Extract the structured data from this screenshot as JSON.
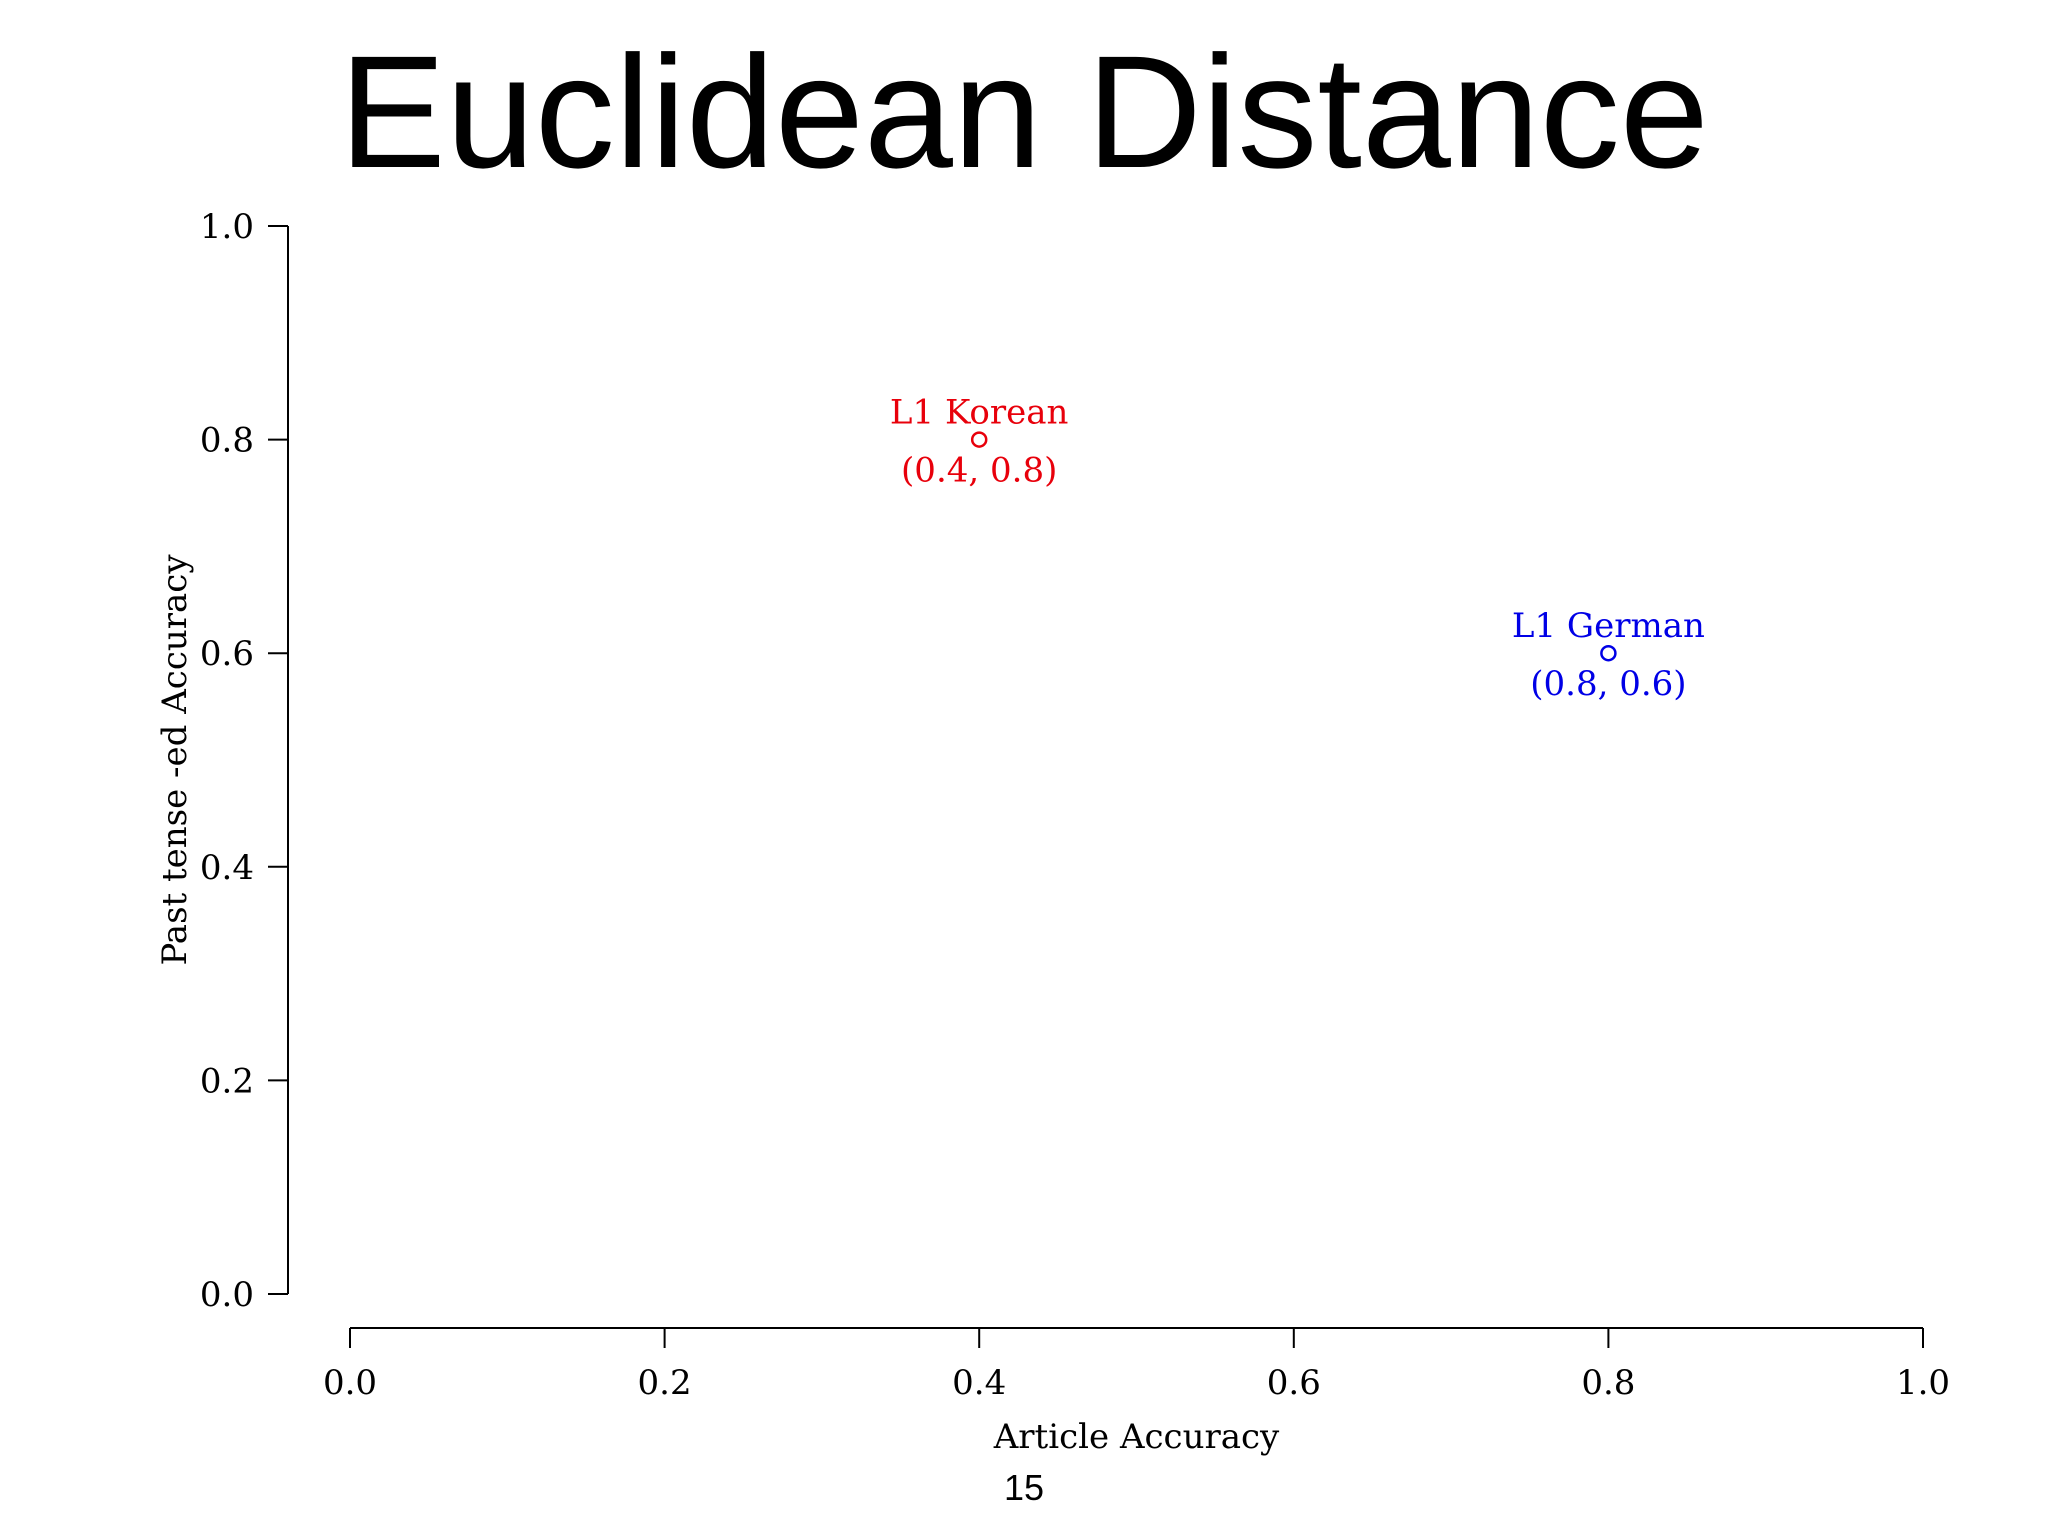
{
  "slide": {
    "title": "Euclidean Distance",
    "page_number": "15"
  },
  "chart_data": {
    "type": "scatter",
    "title": "",
    "xlabel": "Article Accuracy",
    "ylabel": "Past tense -ed Accuracy",
    "xlim": [
      0.0,
      1.0
    ],
    "ylim": [
      0.0,
      1.0
    ],
    "xticks": [
      0.0,
      0.2,
      0.4,
      0.6,
      0.8,
      1.0
    ],
    "yticks": [
      0.0,
      0.2,
      0.4,
      0.6,
      0.8,
      1.0
    ],
    "xtick_labels": [
      "0.0",
      "0.2",
      "0.4",
      "0.6",
      "0.8",
      "1.0"
    ],
    "ytick_labels": [
      "0.0",
      "0.2",
      "0.4",
      "0.6",
      "0.8",
      "1.0"
    ],
    "grid": false,
    "marker": "open-circle",
    "points": [
      {
        "name": "L1 Korean",
        "x": 0.4,
        "y": 0.8,
        "label": "L1 Korean",
        "coord_label": "(0.4, 0.8)",
        "color": "#e8000b"
      },
      {
        "name": "L1 German",
        "x": 0.8,
        "y": 0.6,
        "label": "L1 German",
        "coord_label": "(0.8, 0.6)",
        "color": "#0000e6"
      }
    ]
  }
}
